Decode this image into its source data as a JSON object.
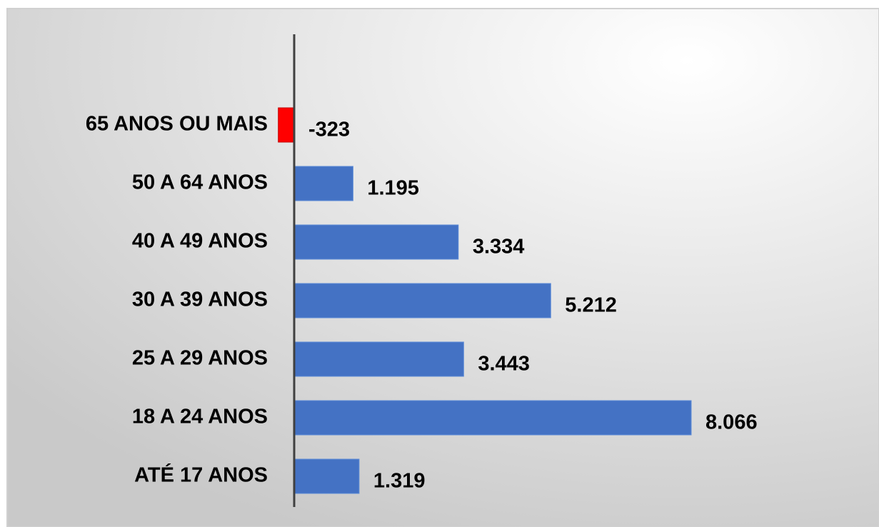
{
  "chart_data": {
    "type": "bar",
    "orientation": "horizontal",
    "categories": [
      "65 ANOS OU MAIS",
      "50 A 64 ANOS",
      "40 A 49 ANOS",
      "30 A 39 ANOS",
      "25 A 29 ANOS",
      "18 A 24 ANOS",
      "ATÉ 17 ANOS"
    ],
    "values": [
      -323,
      1195,
      3334,
      5212,
      3443,
      8066,
      1319
    ],
    "value_labels": [
      "-323",
      "1.195",
      "3.334",
      "5.212",
      "3.443",
      "8.066",
      "1.319"
    ],
    "color": "#4472c4",
    "negative_color": "#ff0000"
  }
}
